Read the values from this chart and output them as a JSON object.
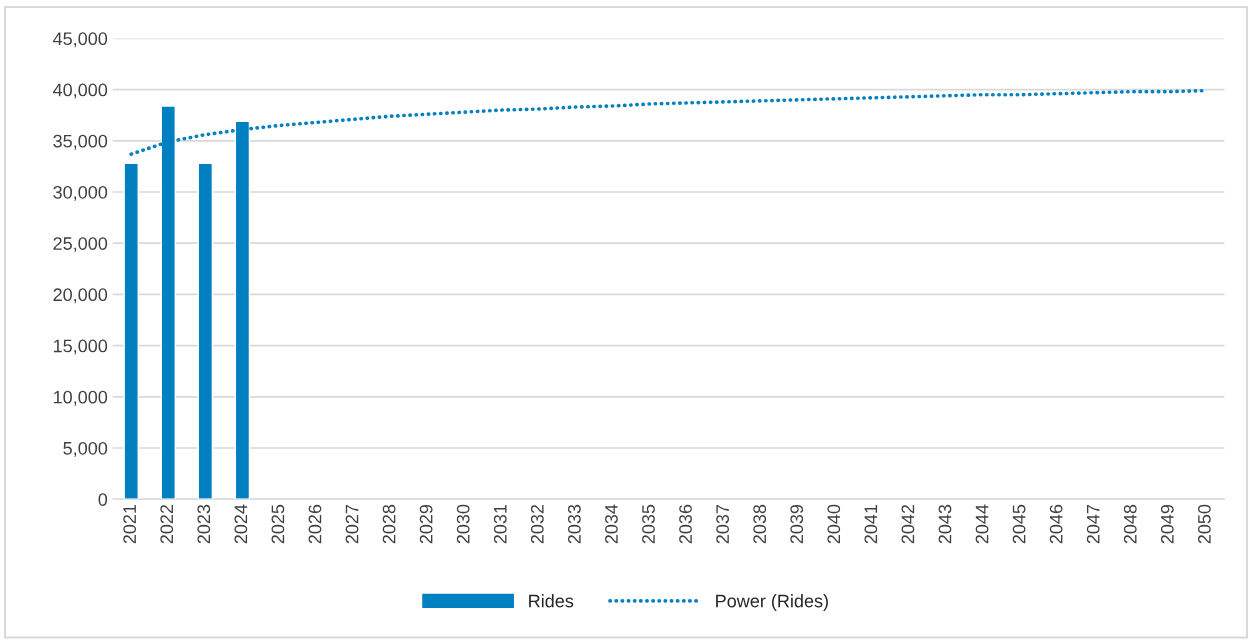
{
  "chart_data": {
    "type": "bar",
    "categories": [
      "2021",
      "2022",
      "2023",
      "2024",
      "2025",
      "2026",
      "2027",
      "2028",
      "2029",
      "2030",
      "2031",
      "2032",
      "2033",
      "2034",
      "2035",
      "2036",
      "2037",
      "2038",
      "2039",
      "2040",
      "2041",
      "2042",
      "2043",
      "2044",
      "2045",
      "2046",
      "2047",
      "2048",
      "2049",
      "2050"
    ],
    "series": [
      {
        "name": "Rides",
        "color": "#0080c0",
        "values": [
          32800,
          38400,
          32800,
          36900,
          null,
          null,
          null,
          null,
          null,
          null,
          null,
          null,
          null,
          null,
          null,
          null,
          null,
          null,
          null,
          null,
          null,
          null,
          null,
          null,
          null,
          null,
          null,
          null,
          null,
          null
        ]
      },
      {
        "name": "Power (Rides)",
        "color": "#0080c0",
        "type": "line",
        "line_style": "dotted",
        "values": [
          33700,
          34900,
          35600,
          36100,
          36500,
          36800,
          37100,
          37400,
          37600,
          37800,
          38000,
          38100,
          38300,
          38400,
          38600,
          38700,
          38800,
          38900,
          39000,
          39100,
          39200,
          39300,
          39400,
          39500,
          39500,
          39600,
          39700,
          39800,
          39800,
          39900
        ]
      }
    ],
    "ylim": [
      0,
      45000
    ],
    "yticks": [
      {
        "value": 0,
        "label": "0"
      },
      {
        "value": 5000,
        "label": "5,000"
      },
      {
        "value": 10000,
        "label": "10,000"
      },
      {
        "value": 15000,
        "label": "15,000"
      },
      {
        "value": 20000,
        "label": "20,000"
      },
      {
        "value": 25000,
        "label": "25,000"
      },
      {
        "value": 30000,
        "label": "30,000"
      },
      {
        "value": 35000,
        "label": "35,000"
      },
      {
        "value": 40000,
        "label": "40,000"
      },
      {
        "value": 45000,
        "label": "45,000"
      }
    ],
    "grid": "y",
    "legend": "bottom",
    "marker": "none"
  }
}
